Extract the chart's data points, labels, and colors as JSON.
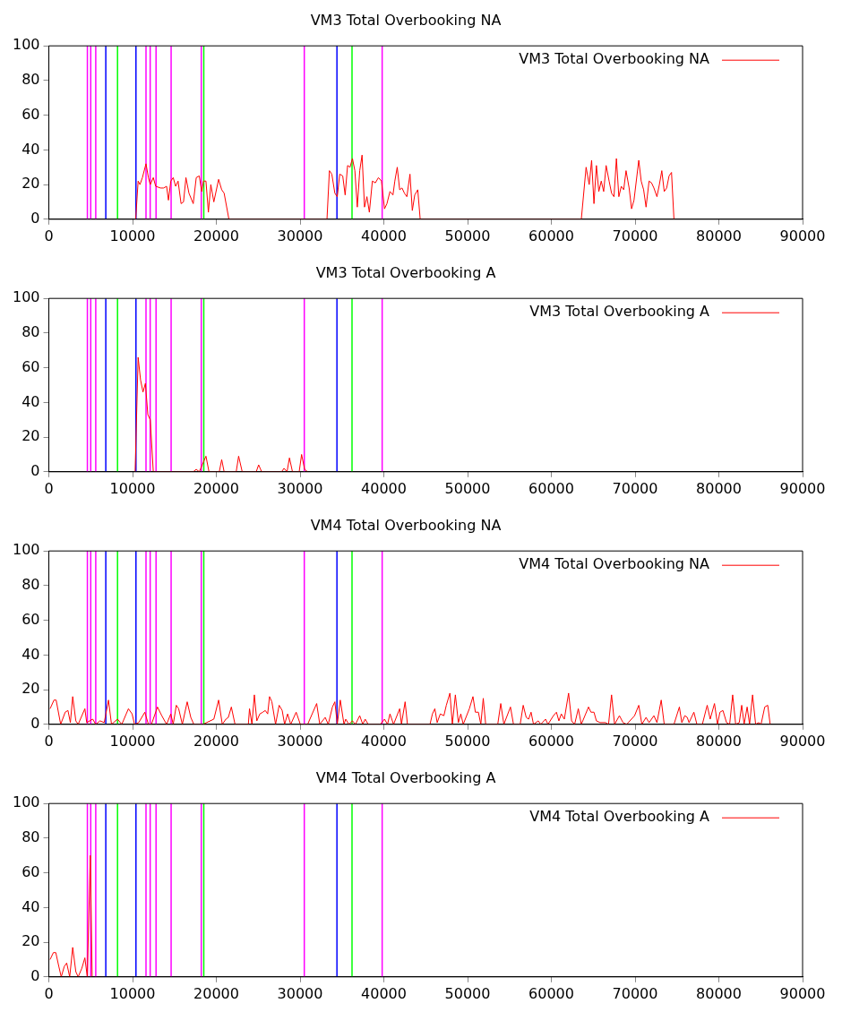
{
  "chart_data": [
    {
      "type": "line",
      "title": "VM3 Total Overbooking NA",
      "legend": "top right",
      "xlim": [
        0,
        90000
      ],
      "xticks": [
        0,
        10000,
        20000,
        30000,
        40000,
        50000,
        60000,
        70000,
        80000,
        90000
      ],
      "ylim": [
        0,
        100
      ],
      "yticks": [
        0,
        20,
        40,
        60,
        80,
        100
      ],
      "x": [
        10370,
        10660,
        10880,
        11170,
        11600,
        11890,
        12110,
        12470,
        12760,
        13340,
        13700,
        14060,
        14280,
        14560,
        14850,
        15140,
        15430,
        15790,
        16080,
        16370,
        16730,
        17240,
        17600,
        17960,
        18250,
        18470,
        18760,
        19050,
        19340,
        19700,
        20270,
        20640,
        20930,
        21500,
        33210,
        33500,
        33790,
        34150,
        34440,
        34730,
        35090,
        35380,
        35670,
        35960,
        36250,
        36540,
        36830,
        37120,
        37400,
        37690,
        37980,
        38270,
        38630,
        38990,
        39350,
        39720,
        40080,
        40370,
        40730,
        41090,
        41310,
        41600,
        41890,
        42170,
        42460,
        42750,
        43120,
        43400,
        43690,
        44050,
        44340,
        63580,
        64150,
        64520,
        64810,
        65090,
        65380,
        65670,
        65960,
        66250,
        66540,
        66900,
        67190,
        67480,
        67770,
        68060,
        68350,
        68640,
        68920,
        69290,
        69580,
        69870,
        70440,
        70730,
        71020,
        71310,
        71670,
        71960,
        72250,
        72610,
        72900,
        73190,
        73480,
        73770,
        74060,
        74350,
        74640
      ],
      "series": [
        {
          "name": "VM3 Total Overbooking NA",
          "color": "#ff0000",
          "values": [
            0,
            22,
            20,
            24,
            32,
            24,
            20,
            24,
            19,
            18,
            18,
            19,
            11,
            22,
            24,
            19,
            22,
            9,
            10,
            24,
            15,
            9,
            24,
            25,
            16,
            22,
            22,
            4,
            20,
            10,
            23,
            17,
            15,
            0,
            0,
            28,
            26,
            15,
            13,
            26,
            25,
            14,
            31,
            30,
            35,
            28,
            7,
            28,
            37,
            7,
            13,
            4,
            22,
            21,
            24,
            22,
            6,
            9,
            16,
            14,
            22,
            30,
            17,
            18,
            15,
            13,
            26,
            5,
            14,
            17,
            0,
            0,
            30,
            20,
            34,
            9,
            31,
            16,
            22,
            16,
            31,
            22,
            15,
            13,
            35,
            13,
            19,
            17,
            28,
            18,
            6,
            11,
            34,
            22,
            17,
            7,
            22,
            21,
            18,
            13,
            20,
            28,
            16,
            18,
            25,
            27,
            0
          ]
        }
      ],
      "ref_lines": [
        {
          "axis": "x",
          "value": 4600,
          "color": "#ff00ff"
        },
        {
          "axis": "x",
          "value": 5000,
          "color": "#ff00ff"
        },
        {
          "axis": "x",
          "value": 5600,
          "color": "#ff00ff"
        },
        {
          "axis": "x",
          "value": 6800,
          "color": "#0000ff"
        },
        {
          "axis": "x",
          "value": 8200,
          "color": "#00ff00"
        },
        {
          "axis": "x",
          "value": 10400,
          "color": "#0000ff"
        },
        {
          "axis": "x",
          "value": 11600,
          "color": "#ff00ff"
        },
        {
          "axis": "x",
          "value": 12100,
          "color": "#ff00ff"
        },
        {
          "axis": "x",
          "value": 12800,
          "color": "#ff00ff"
        },
        {
          "axis": "x",
          "value": 14600,
          "color": "#ff00ff"
        },
        {
          "axis": "x",
          "value": 18200,
          "color": "#ff00ff"
        },
        {
          "axis": "x",
          "value": 18500,
          "color": "#00ff00"
        },
        {
          "axis": "x",
          "value": 30500,
          "color": "#ff00ff"
        },
        {
          "axis": "x",
          "value": 34400,
          "color": "#0000ff"
        },
        {
          "axis": "x",
          "value": 36200,
          "color": "#00ff00"
        },
        {
          "axis": "x",
          "value": 39800,
          "color": "#ff00ff"
        }
      ]
    },
    {
      "type": "line",
      "title": "VM3 Total Overbooking A",
      "legend": "top right",
      "xlim": [
        0,
        90000
      ],
      "xticks": [
        0,
        10000,
        20000,
        30000,
        40000,
        50000,
        60000,
        70000,
        80000,
        90000
      ],
      "ylim": [
        0,
        100
      ],
      "yticks": [
        0,
        20,
        40,
        60,
        80,
        100
      ],
      "x": [
        10300,
        10660,
        10950,
        11240,
        11530,
        11820,
        12110,
        12470,
        17240,
        17600,
        17960,
        18760,
        19120,
        20350,
        20640,
        20930,
        22370,
        22660,
        23090,
        24760,
        25050,
        25410,
        27790,
        28080,
        28440,
        28730,
        29090,
        29890,
        30180,
        30540,
        30900
      ],
      "series": [
        {
          "name": "VM3 Total Overbooking A",
          "color": "#ff0000",
          "values": [
            0,
            66,
            53,
            46,
            51,
            33,
            30,
            0,
            0,
            1.4,
            0,
            9,
            0,
            0,
            7,
            0,
            0,
            9,
            0,
            0,
            4,
            0,
            0,
            2,
            0,
            8,
            0,
            0,
            10,
            1.4,
            0
          ]
        }
      ],
      "ref_lines": [
        {
          "axis": "x",
          "value": 4600,
          "color": "#ff00ff"
        },
        {
          "axis": "x",
          "value": 5000,
          "color": "#ff00ff"
        },
        {
          "axis": "x",
          "value": 5600,
          "color": "#ff00ff"
        },
        {
          "axis": "x",
          "value": 6800,
          "color": "#0000ff"
        },
        {
          "axis": "x",
          "value": 8200,
          "color": "#00ff00"
        },
        {
          "axis": "x",
          "value": 10400,
          "color": "#0000ff"
        },
        {
          "axis": "x",
          "value": 11600,
          "color": "#ff00ff"
        },
        {
          "axis": "x",
          "value": 12100,
          "color": "#ff00ff"
        },
        {
          "axis": "x",
          "value": 12800,
          "color": "#ff00ff"
        },
        {
          "axis": "x",
          "value": 14600,
          "color": "#ff00ff"
        },
        {
          "axis": "x",
          "value": 18200,
          "color": "#ff00ff"
        },
        {
          "axis": "x",
          "value": 18500,
          "color": "#00ff00"
        },
        {
          "axis": "x",
          "value": 30500,
          "color": "#ff00ff"
        },
        {
          "axis": "x",
          "value": 34400,
          "color": "#0000ff"
        },
        {
          "axis": "x",
          "value": 36200,
          "color": "#00ff00"
        },
        {
          "axis": "x",
          "value": 39800,
          "color": "#ff00ff"
        }
      ]
    },
    {
      "type": "line",
      "title": "VM4 Total Overbooking NA",
      "legend": "top right",
      "xlim": [
        0,
        90000
      ],
      "xticks": [
        0,
        10000,
        20000,
        30000,
        40000,
        50000,
        60000,
        70000,
        80000,
        90000
      ],
      "ylim": [
        0,
        100
      ],
      "yticks": [
        0,
        20,
        40,
        60,
        80,
        100
      ],
      "x": [
        145,
        615,
        870,
        1410,
        1950,
        2280,
        2570,
        2850,
        3220,
        3500,
        4300,
        4520,
        5240,
        5600,
        6110,
        6610,
        7120,
        7480,
        8200,
        8710,
        9500,
        9940,
        10230,
        10730,
        11460,
        11890,
        12250,
        12970,
        13480,
        14060,
        14560,
        14850,
        15220,
        15500,
        15940,
        16520,
        16950,
        17310,
        18400,
        19700,
        20270,
        20710,
        21140,
        21430,
        21790,
        22230,
        23820,
        23960,
        24250,
        24540,
        24830,
        25190,
        25550,
        25840,
        26130,
        26350,
        26630,
        27070,
        27500,
        27860,
        28150,
        28510,
        28880,
        29530,
        30030,
        30900,
        31980,
        32350,
        33000,
        33360,
        33860,
        34150,
        34440,
        34800,
        35240,
        35450,
        35820,
        36250,
        36610,
        37120,
        37480,
        37770,
        38130,
        39580,
        40080,
        40440,
        40730,
        41160,
        41890,
        42100,
        42540,
        42820,
        45510,
        45800,
        46090,
        46370,
        46740,
        47170,
        47460,
        47890,
        48180,
        48540,
        48900,
        49190,
        49480,
        50210,
        50640,
        50930,
        51290,
        51580,
        51870,
        52160,
        53600,
        53960,
        54330,
        55120,
        55480,
        56280,
        56640,
        57000,
        57290,
        57580,
        57870,
        58440,
        58740,
        59310,
        59600,
        60250,
        60610,
        60900,
        61190,
        61550,
        62060,
        62420,
        62780,
        63220,
        63580,
        64440,
        64730,
        65090,
        65380,
        65820,
        66470,
        66830,
        67190,
        67550,
        68130,
        68560,
        69000,
        69940,
        70440,
        70810,
        71310,
        71670,
        72250,
        72610,
        73120,
        73480,
        74640,
        75290,
        75580,
        75940,
        76230,
        76440,
        77020,
        77380,
        78030,
        78610,
        78970,
        79480,
        79840,
        80130,
        80490,
        80920,
        81290,
        81650,
        82010,
        82440,
        82730,
        83020,
        83380,
        83670,
        84030,
        84390,
        84760,
        85040,
        85480,
        85840,
        86130
      ],
      "series": [
        {
          "name": "VM4 Total Overbooking NA",
          "color": "#ff0000",
          "values": [
            9,
            14,
            14,
            0,
            7,
            8,
            1,
            16,
            2,
            0,
            9,
            1,
            3,
            0,
            2,
            1,
            14,
            0,
            3,
            0,
            9,
            6,
            0,
            1,
            7,
            0,
            0,
            10,
            5,
            0,
            6,
            0,
            11,
            9,
            0,
            13,
            4,
            0,
            0,
            3,
            14,
            0,
            3,
            4,
            10,
            0,
            0,
            9,
            0,
            17,
            2,
            6,
            7,
            8,
            6,
            16,
            13,
            0,
            11,
            8,
            0,
            6,
            0,
            7,
            0,
            0,
            12,
            0,
            4,
            0,
            10,
            13,
            0,
            14,
            0,
            3,
            0,
            2,
            0,
            5,
            0,
            3,
            0,
            0,
            3,
            0,
            6,
            0,
            9,
            0,
            13,
            0,
            0,
            6,
            9,
            1,
            6,
            5,
            11,
            18,
            0,
            17,
            1,
            6,
            0,
            9,
            16,
            7,
            7,
            0,
            15,
            0,
            0,
            12,
            0,
            10,
            0,
            0,
            11,
            4,
            3,
            7,
            0,
            2,
            0,
            3,
            0,
            5,
            7,
            2,
            6,
            3,
            18,
            2,
            0,
            9,
            0,
            10,
            7,
            7,
            2,
            1,
            1,
            0,
            17,
            0,
            5,
            1,
            0,
            5,
            11,
            0,
            4,
            1,
            5,
            1,
            14,
            0,
            0,
            10,
            1,
            5,
            4,
            1,
            7,
            0,
            0,
            11,
            3,
            12,
            0,
            7,
            8,
            1,
            0,
            17,
            0,
            1,
            11,
            0,
            10,
            0,
            17,
            0,
            1,
            0,
            10,
            11,
            0
          ]
        }
      ],
      "ref_lines": [
        {
          "axis": "x",
          "value": 4600,
          "color": "#ff00ff"
        },
        {
          "axis": "x",
          "value": 5000,
          "color": "#ff00ff"
        },
        {
          "axis": "x",
          "value": 5600,
          "color": "#ff00ff"
        },
        {
          "axis": "x",
          "value": 6800,
          "color": "#0000ff"
        },
        {
          "axis": "x",
          "value": 8200,
          "color": "#00ff00"
        },
        {
          "axis": "x",
          "value": 10400,
          "color": "#0000ff"
        },
        {
          "axis": "x",
          "value": 11600,
          "color": "#ff00ff"
        },
        {
          "axis": "x",
          "value": 12100,
          "color": "#ff00ff"
        },
        {
          "axis": "x",
          "value": 12800,
          "color": "#ff00ff"
        },
        {
          "axis": "x",
          "value": 14600,
          "color": "#ff00ff"
        },
        {
          "axis": "x",
          "value": 18200,
          "color": "#ff00ff"
        },
        {
          "axis": "x",
          "value": 18500,
          "color": "#00ff00"
        },
        {
          "axis": "x",
          "value": 30500,
          "color": "#ff00ff"
        },
        {
          "axis": "x",
          "value": 34400,
          "color": "#0000ff"
        },
        {
          "axis": "x",
          "value": 36200,
          "color": "#00ff00"
        },
        {
          "axis": "x",
          "value": 39800,
          "color": "#ff00ff"
        }
      ]
    },
    {
      "type": "line",
      "title": "VM4 Total Overbooking A",
      "legend": "top right",
      "xlim": [
        0,
        90000
      ],
      "xticks": [
        0,
        10000,
        20000,
        30000,
        40000,
        50000,
        60000,
        70000,
        80000,
        90000
      ],
      "ylim": [
        0,
        100
      ],
      "yticks": [
        0,
        20,
        40,
        60,
        80,
        100
      ],
      "x": [
        145,
        540,
        830,
        1190,
        1480,
        1840,
        2130,
        2490,
        2850,
        3220,
        3500,
        3940,
        4300,
        4590,
        4950,
        5170
      ],
      "series": [
        {
          "name": "VM4 Total Overbooking A",
          "color": "#ff0000",
          "values": [
            10,
            14,
            14,
            6,
            0,
            6,
            8,
            0,
            17,
            3,
            0,
            5,
            11,
            0,
            70,
            0
          ]
        }
      ],
      "ref_lines": [
        {
          "axis": "x",
          "value": 4600,
          "color": "#ff00ff"
        },
        {
          "axis": "x",
          "value": 5000,
          "color": "#ff00ff"
        },
        {
          "axis": "x",
          "value": 5600,
          "color": "#ff00ff"
        },
        {
          "axis": "x",
          "value": 6800,
          "color": "#0000ff"
        },
        {
          "axis": "x",
          "value": 8200,
          "color": "#00ff00"
        },
        {
          "axis": "x",
          "value": 10400,
          "color": "#0000ff"
        },
        {
          "axis": "x",
          "value": 11600,
          "color": "#ff00ff"
        },
        {
          "axis": "x",
          "value": 12100,
          "color": "#ff00ff"
        },
        {
          "axis": "x",
          "value": 12800,
          "color": "#ff00ff"
        },
        {
          "axis": "x",
          "value": 14600,
          "color": "#ff00ff"
        },
        {
          "axis": "x",
          "value": 18200,
          "color": "#ff00ff"
        },
        {
          "axis": "x",
          "value": 18500,
          "color": "#00ff00"
        },
        {
          "axis": "x",
          "value": 30500,
          "color": "#ff00ff"
        },
        {
          "axis": "x",
          "value": 34400,
          "color": "#0000ff"
        },
        {
          "axis": "x",
          "value": 36200,
          "color": "#00ff00"
        },
        {
          "axis": "x",
          "value": 39800,
          "color": "#ff00ff"
        }
      ]
    }
  ]
}
